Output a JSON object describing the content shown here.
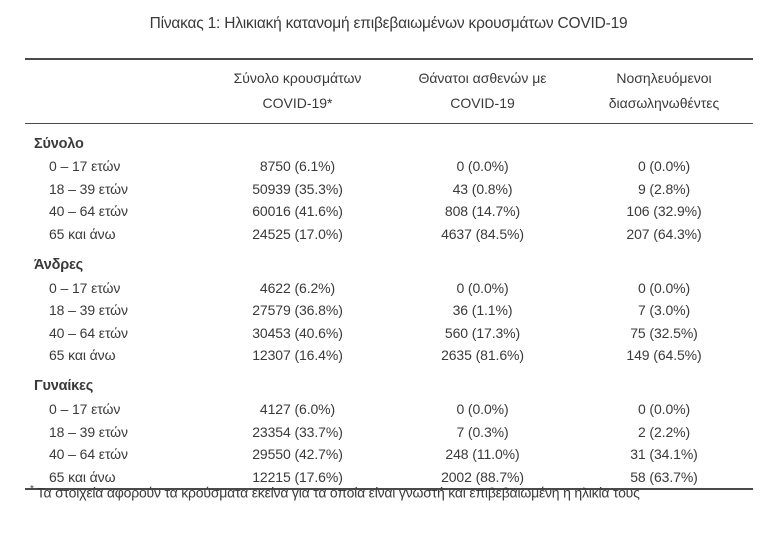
{
  "title": "Πίνακας 1: Ηλικιακή κατανομή επιβεβαιωμένων κρουσμάτων COVID-19",
  "table": {
    "columns": [
      {
        "line1": "Σύνολο κρουσμάτων",
        "line2": "COVID-19*"
      },
      {
        "line1": "Θάνατοι ασθενών με",
        "line2": "COVID-19"
      },
      {
        "line1": "Νοσηλευόμενοι",
        "line2": "διασωληνωθέντες"
      }
    ],
    "sections": [
      {
        "label": "Σύνολο",
        "rows": [
          {
            "age": "0 – 17 ετών",
            "cases": "8750 (6.1%)",
            "deaths": "0 (0.0%)",
            "intubated": "0 (0.0%)"
          },
          {
            "age": "18 – 39 ετών",
            "cases": "50939 (35.3%)",
            "deaths": "43 (0.8%)",
            "intubated": "9 (2.8%)"
          },
          {
            "age": "40 – 64 ετών",
            "cases": "60016 (41.6%)",
            "deaths": "808 (14.7%)",
            "intubated": "106 (32.9%)"
          },
          {
            "age": "65 και άνω",
            "cases": "24525 (17.0%)",
            "deaths": "4637 (84.5%)",
            "intubated": "207 (64.3%)"
          }
        ]
      },
      {
        "label": "Άνδρες",
        "rows": [
          {
            "age": "0 – 17 ετών",
            "cases": "4622 (6.2%)",
            "deaths": "0 (0.0%)",
            "intubated": "0 (0.0%)"
          },
          {
            "age": "18 – 39 ετών",
            "cases": "27579 (36.8%)",
            "deaths": "36 (1.1%)",
            "intubated": "7 (3.0%)"
          },
          {
            "age": "40 – 64 ετών",
            "cases": "30453 (40.6%)",
            "deaths": "560 (17.3%)",
            "intubated": "75 (32.5%)"
          },
          {
            "age": "65 και άνω",
            "cases": "12307 (16.4%)",
            "deaths": "2635 (81.6%)",
            "intubated": "149 (64.5%)"
          }
        ]
      },
      {
        "label": "Γυναίκες",
        "rows": [
          {
            "age": "0 – 17 ετών",
            "cases": "4127 (6.0%)",
            "deaths": "0 (0.0%)",
            "intubated": "0 (0.0%)"
          },
          {
            "age": "18 – 39 ετών",
            "cases": "23354 (33.7%)",
            "deaths": "7 (0.3%)",
            "intubated": "2 (2.2%)"
          },
          {
            "age": "40 – 64 ετών",
            "cases": "29550 (42.7%)",
            "deaths": "248 (11.0%)",
            "intubated": "31 (34.1%)"
          },
          {
            "age": "65 και άνω",
            "cases": "12215 (17.6%)",
            "deaths": "2002 (88.7%)",
            "intubated": "58 (63.7%)"
          }
        ]
      }
    ]
  },
  "footnote": {
    "marker": "*",
    "text": "Τα στοιχεία αφορούν τα κρούσματα εκείνα για τα οποία είναι γνωστή και επιβεβαιωμένη η ηλικία τους"
  }
}
